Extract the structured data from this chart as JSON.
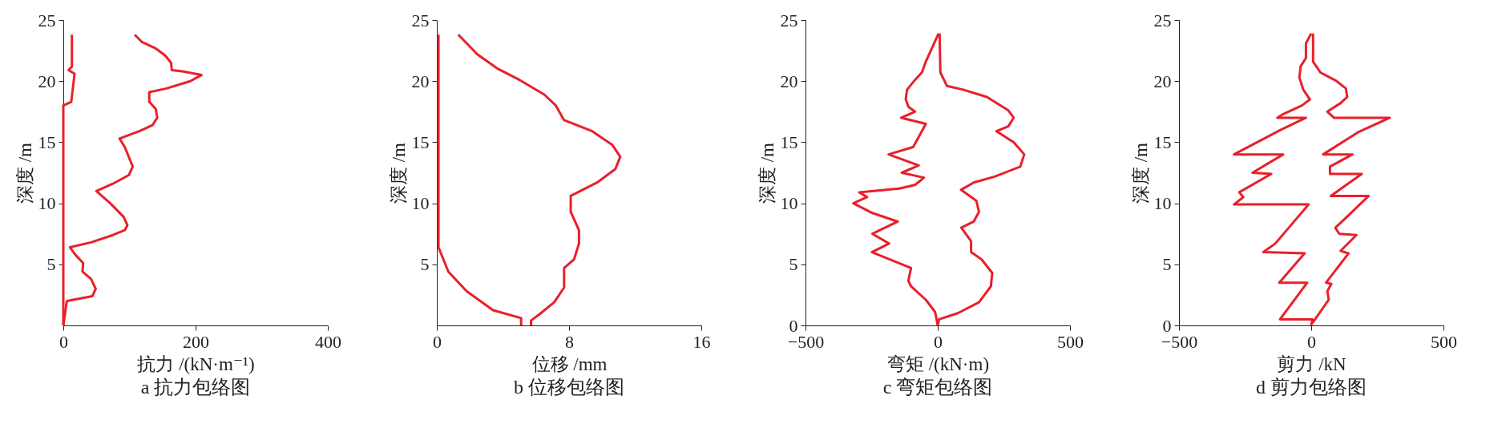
{
  "chart_data": [
    {
      "type": "line",
      "title": "a 抗力包络图",
      "xlabel": "抗力 /(kN·m⁻¹)",
      "ylabel": "深度 /m",
      "xlim": [
        0,
        400
      ],
      "xticks": [
        0,
        200,
        400
      ],
      "ylim": [
        0,
        25
      ],
      "yticks": [
        5,
        10,
        15,
        20,
        25
      ],
      "grid": false,
      "legend": false,
      "series": [
        {
          "color": "#e8202a",
          "x": [
            13,
            13,
            8,
            17,
            12,
            0,
            0,
            0
          ],
          "values": [
            23.8,
            21.2,
            20.9,
            20.6,
            18.3,
            18.0,
            2.0,
            0
          ]
        },
        {
          "color": "#e8202a",
          "x": [
            108,
            119,
            139,
            154,
            163,
            164,
            180,
            209,
            192,
            156,
            130,
            130,
            140,
            142,
            135,
            115,
            85,
            93,
            105,
            99,
            75,
            50,
            71,
            91,
            97,
            93,
            75,
            42,
            10,
            18,
            30,
            29,
            42,
            49,
            44,
            6,
            5,
            0
          ],
          "values": [
            23.8,
            23.2,
            22.7,
            22.1,
            21.5,
            20.9,
            20.8,
            20.5,
            20.0,
            19.4,
            19.1,
            18.3,
            17.7,
            17.0,
            16.4,
            15.9,
            15.3,
            14.6,
            13.0,
            12.3,
            11.6,
            11.0,
            10.0,
            8.9,
            8.2,
            7.8,
            7.4,
            6.8,
            6.4,
            5.8,
            5.1,
            4.4,
            3.8,
            3.0,
            2.4,
            2.0,
            1.9,
            0
          ]
        }
      ]
    },
    {
      "type": "line",
      "title": "b 位移包络图",
      "xlabel": "位移 /mm",
      "ylabel": "深度 /m",
      "xlim": [
        0,
        16
      ],
      "xticks": [
        0,
        8,
        16
      ],
      "ylim": [
        0,
        25
      ],
      "yticks": [
        5,
        10,
        15,
        20,
        25
      ],
      "grid": false,
      "legend": false,
      "series": [
        {
          "color": "#e8202a",
          "x": [
            0.1,
            0.1,
            0.7,
            1.8,
            3.4,
            5.1,
            5.1
          ],
          "values": [
            23.8,
            6.4,
            4.4,
            2.8,
            1.25,
            0.6,
            0
          ]
        },
        {
          "color": "#e8202a",
          "x": [
            1.3,
            2.45,
            3.7,
            5.0,
            6.5,
            7.2,
            7.7,
            9.4,
            10.6,
            11.1,
            10.8,
            9.7,
            8.1,
            8.1,
            8.6,
            8.6,
            8.3,
            7.7,
            7.7,
            7.1,
            6.2,
            5.7,
            5.7
          ],
          "values": [
            23.8,
            22.2,
            21.0,
            20.1,
            18.9,
            18.0,
            16.8,
            15.9,
            14.8,
            13.8,
            12.8,
            11.7,
            10.6,
            9.3,
            7.8,
            6.7,
            5.4,
            4.7,
            3.1,
            1.9,
            0.9,
            0.4,
            0
          ]
        }
      ]
    },
    {
      "type": "line",
      "title": "c 弯矩包络图",
      "xlabel": "弯矩 /(kN·m)",
      "ylabel": "深度 /m",
      "xlim": [
        -500,
        500
      ],
      "xticks": [
        -500,
        0,
        500
      ],
      "ylim": [
        0,
        25
      ],
      "yticks": [
        0,
        5,
        10,
        15,
        20,
        25
      ],
      "grid": false,
      "legend": false,
      "series": [
        {
          "color": "#e8202a",
          "x": [
            3,
            -45,
            -60,
            -86,
            -116,
            -121,
            -111,
            -86,
            -138,
            -45,
            -65,
            -93,
            -186,
            -72,
            -136,
            -52,
            -86,
            -146,
            -297,
            -267,
            -319,
            -247,
            -151,
            -247,
            -184,
            -249,
            -101,
            -111,
            -101,
            -45,
            -10,
            0
          ],
          "values": [
            23.9,
            21.6,
            20.7,
            20.1,
            19.3,
            18.5,
            17.9,
            17.5,
            17.0,
            16.5,
            15.7,
            14.6,
            14.0,
            13.1,
            12.5,
            12.1,
            11.5,
            11.2,
            10.9,
            10.5,
            10.0,
            9.2,
            8.5,
            7.5,
            6.7,
            6.0,
            4.7,
            3.65,
            3.2,
            2.1,
            1.1,
            0
          ]
        },
        {
          "color": "#e8202a",
          "x": [
            7,
            10,
            35,
            96,
            186,
            267,
            287,
            267,
            222,
            287,
            327,
            312,
            217,
            136,
            88,
            146,
            156,
            136,
            89,
            126,
            126,
            166,
            206,
            201,
            156,
            76,
            5,
            0
          ],
          "values": [
            23.9,
            20.7,
            19.6,
            19.3,
            18.7,
            17.6,
            17.0,
            16.3,
            15.9,
            15.0,
            14.0,
            13.0,
            12.2,
            11.7,
            11.1,
            10.2,
            9.3,
            8.5,
            8.0,
            6.9,
            6.0,
            5.4,
            4.3,
            3.2,
            1.9,
            1.0,
            0.5,
            0
          ]
        }
      ]
    },
    {
      "type": "line",
      "title": "d 剪力包络图",
      "xlabel": "剪力 /kN",
      "ylabel": "深度 /m",
      "xlim": [
        -500,
        500
      ],
      "xticks": [
        -500,
        0,
        500
      ],
      "ylim": [
        0,
        25
      ],
      "yticks": [
        0,
        5,
        10,
        15,
        20,
        25
      ],
      "grid": false,
      "legend": false,
      "series": [
        {
          "color": "#e8202a",
          "x": [
            0,
            -20,
            -20,
            -40,
            -45,
            -30,
            -5,
            -35,
            -106,
            -128,
            -20,
            -116,
            -292,
            -106,
            -222,
            -151,
            -272,
            -257,
            -292,
            -10,
            -136,
            -181,
            -25,
            -121,
            -15,
            -118,
            5,
            0
          ],
          "values": [
            23.9,
            23.1,
            21.9,
            21.2,
            20.3,
            19.3,
            18.5,
            18.0,
            17.3,
            17.0,
            17.0,
            16.0,
            14.0,
            14.0,
            12.5,
            12.4,
            10.9,
            10.5,
            9.9,
            9.9,
            6.7,
            6.0,
            5.9,
            3.5,
            3.5,
            0.5,
            0.5,
            0
          ]
        },
        {
          "color": "#e8202a",
          "x": [
            7,
            7,
            35,
            96,
            131,
            136,
            111,
            61,
            86,
            297,
            176,
            45,
            156,
            71,
            71,
            191,
            74,
            217,
            126,
            91,
            106,
            171,
            111,
            141,
            56,
            76,
            61,
            66,
            5
          ],
          "values": [
            23.9,
            21.6,
            20.7,
            20.0,
            19.4,
            18.7,
            18.2,
            17.5,
            17.0,
            17.0,
            15.8,
            14.0,
            14.0,
            13.0,
            12.4,
            12.4,
            10.6,
            10.6,
            8.7,
            8.0,
            7.5,
            7.4,
            6.1,
            5.9,
            3.5,
            3.4,
            2.8,
            2.1,
            0.2
          ]
        }
      ]
    }
  ]
}
